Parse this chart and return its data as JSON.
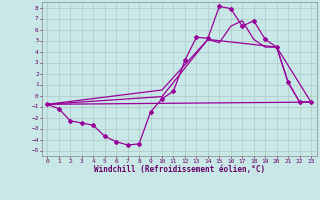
{
  "xlabel": "Windchill (Refroidissement éolien,°C)",
  "bg_color": "#c8e8e8",
  "grid_color": "#b0c8c8",
  "line_color": "#990099",
  "xlim": [
    -0.5,
    23.5
  ],
  "ylim": [
    -5.5,
    8.5
  ],
  "xticks": [
    0,
    1,
    2,
    3,
    4,
    5,
    6,
    7,
    8,
    9,
    10,
    11,
    12,
    13,
    14,
    15,
    16,
    17,
    18,
    19,
    20,
    21,
    22,
    23
  ],
  "yticks": [
    -5,
    -4,
    -3,
    -2,
    -1,
    0,
    1,
    2,
    3,
    4,
    5,
    6,
    7,
    8
  ],
  "curve1_x": [
    0,
    1,
    2,
    3,
    4,
    5,
    6,
    7,
    8,
    9,
    10,
    11,
    12,
    13,
    14,
    15,
    16,
    17,
    18,
    19,
    20,
    21,
    22,
    23
  ],
  "curve1_y": [
    -0.8,
    -1.2,
    -2.3,
    -2.5,
    -2.7,
    -3.7,
    -4.2,
    -4.5,
    -4.4,
    -1.5,
    -0.3,
    0.4,
    3.2,
    5.3,
    5.2,
    8.1,
    7.9,
    6.3,
    6.8,
    5.1,
    4.4,
    1.2,
    -0.6,
    -0.6
  ],
  "curve2_x": [
    0,
    23
  ],
  "curve2_y": [
    -0.8,
    -0.6
  ],
  "curve3_x": [
    0,
    10,
    14,
    15,
    16,
    17,
    18,
    19,
    20,
    21,
    22,
    23
  ],
  "curve3_y": [
    -0.8,
    -0.1,
    5.1,
    4.8,
    6.3,
    6.8,
    5.1,
    4.4,
    4.4,
    1.2,
    -0.6,
    -0.6
  ],
  "curve4_x": [
    0,
    10,
    14,
    20,
    23
  ],
  "curve4_y": [
    -0.8,
    0.5,
    5.1,
    4.4,
    -0.6
  ]
}
